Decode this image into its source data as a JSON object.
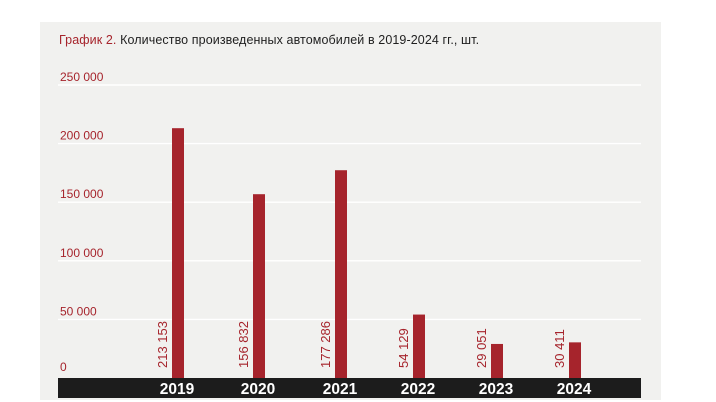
{
  "title": {
    "prefix": "График 2.",
    "text": "Количество произведенных автомобилей в 2019-2024 гг., шт."
  },
  "colors": {
    "bar": "#a6242c",
    "axis_band": "#1c1c1c",
    "grid": "#ffffff",
    "background": "#f1f1ef"
  },
  "chart_data": {
    "type": "bar",
    "categories": [
      "2019",
      "2020",
      "2021",
      "2022",
      "2023",
      "2024"
    ],
    "values": [
      213153,
      156832,
      177286,
      54129,
      29051,
      30411
    ],
    "value_labels": [
      "213 153",
      "156 832",
      "177 286",
      "54 129",
      "29 051",
      "30 411"
    ],
    "y_ticks": [
      0,
      50000,
      100000,
      150000,
      200000,
      250000
    ],
    "y_tick_labels": [
      "0",
      "50 000",
      "100 000",
      "150 000",
      "200 000",
      "250 000"
    ],
    "ylim": [
      0,
      250000
    ],
    "grid": true,
    "legend": "none"
  }
}
